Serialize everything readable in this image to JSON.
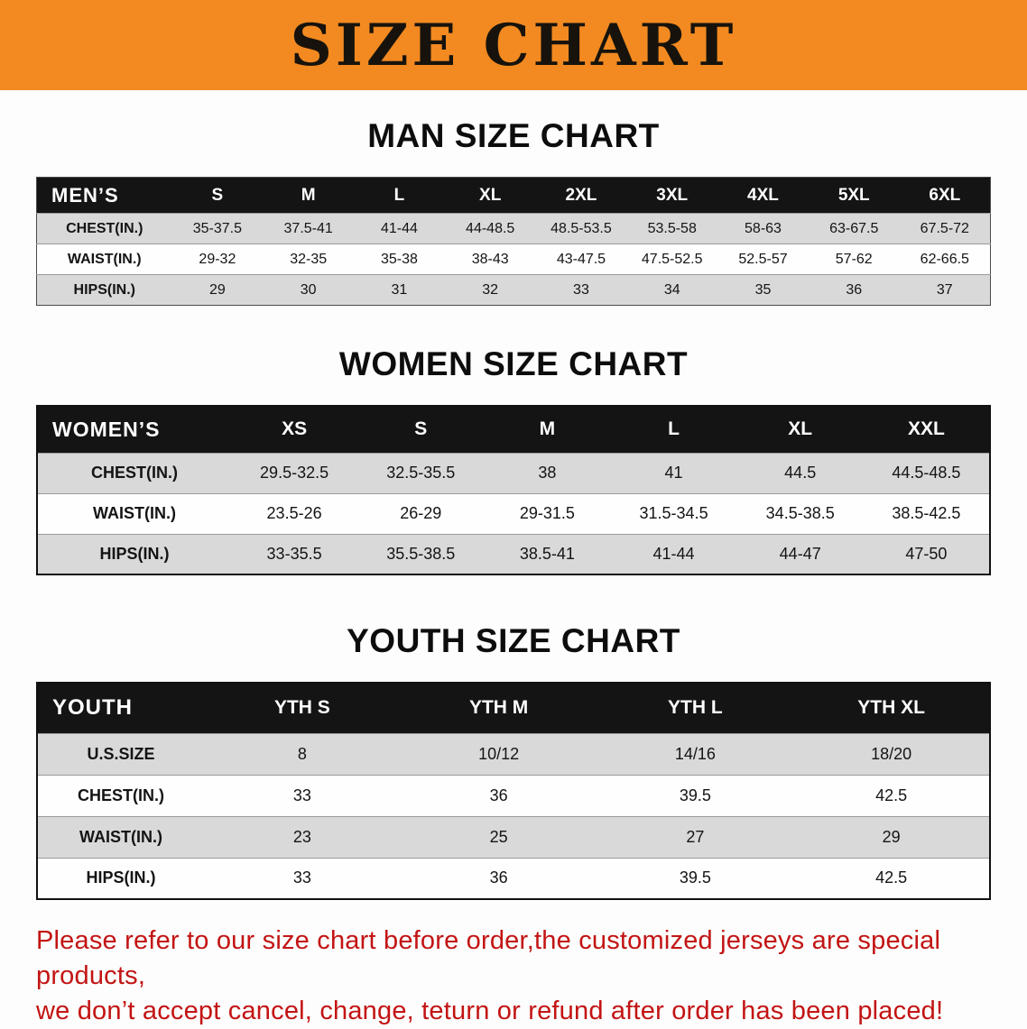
{
  "banner": {
    "title": "SIZE CHART"
  },
  "colors": {
    "banner_bg": "#f28a21",
    "header_bg": "#141414",
    "row_alt": "#d9d9d9",
    "disclaimer_color": "#c31414"
  },
  "tables": [
    {
      "title": "MAN SIZE CHART",
      "header": [
        "MEN’S",
        "S",
        "M",
        "L",
        "XL",
        "2XL",
        "3XL",
        "4XL",
        "5XL",
        "6XL"
      ],
      "rows": [
        [
          "CHEST(IN.)",
          "35-37.5",
          "37.5-41",
          "41-44",
          "44-48.5",
          "48.5-53.5",
          "53.5-58",
          "58-63",
          "63-67.5",
          "67.5-72"
        ],
        [
          "WAIST(IN.)",
          "29-32",
          "32-35",
          "35-38",
          "38-43",
          "43-47.5",
          "47.5-52.5",
          "52.5-57",
          "57-62",
          "62-66.5"
        ],
        [
          "HIPS(IN.)",
          "29",
          "30",
          "31",
          "32",
          "33",
          "34",
          "35",
          "36",
          "37"
        ]
      ]
    },
    {
      "title": "WOMEN SIZE CHART",
      "header": [
        "WOMEN’S",
        "XS",
        "S",
        "M",
        "L",
        "XL",
        "XXL"
      ],
      "rows": [
        [
          "CHEST(IN.)",
          "29.5-32.5",
          "32.5-35.5",
          "38",
          "41",
          "44.5",
          "44.5-48.5"
        ],
        [
          "WAIST(IN.)",
          "23.5-26",
          "26-29",
          "29-31.5",
          "31.5-34.5",
          "34.5-38.5",
          "38.5-42.5"
        ],
        [
          "HIPS(IN.)",
          "33-35.5",
          "35.5-38.5",
          "38.5-41",
          "41-44",
          "44-47",
          "47-50"
        ]
      ]
    },
    {
      "title": "YOUTH SIZE CHART",
      "header": [
        "YOUTH",
        "YTH S",
        "YTH M",
        "YTH L",
        "YTH XL"
      ],
      "rows": [
        [
          "U.S.SIZE",
          "8",
          "10/12",
          "14/16",
          "18/20"
        ],
        [
          "CHEST(IN.)",
          "33",
          "36",
          "39.5",
          "42.5"
        ],
        [
          "WAIST(IN.)",
          "23",
          "25",
          "27",
          "29"
        ],
        [
          "HIPS(IN.)",
          "33",
          "36",
          "39.5",
          "42.5"
        ]
      ]
    }
  ],
  "disclaimer": {
    "line1": "Please refer to our size chart before order,the customized jerseys are special products,",
    "line2": "we don’t accept cancel, change, teturn or refund after order has been placed!"
  }
}
